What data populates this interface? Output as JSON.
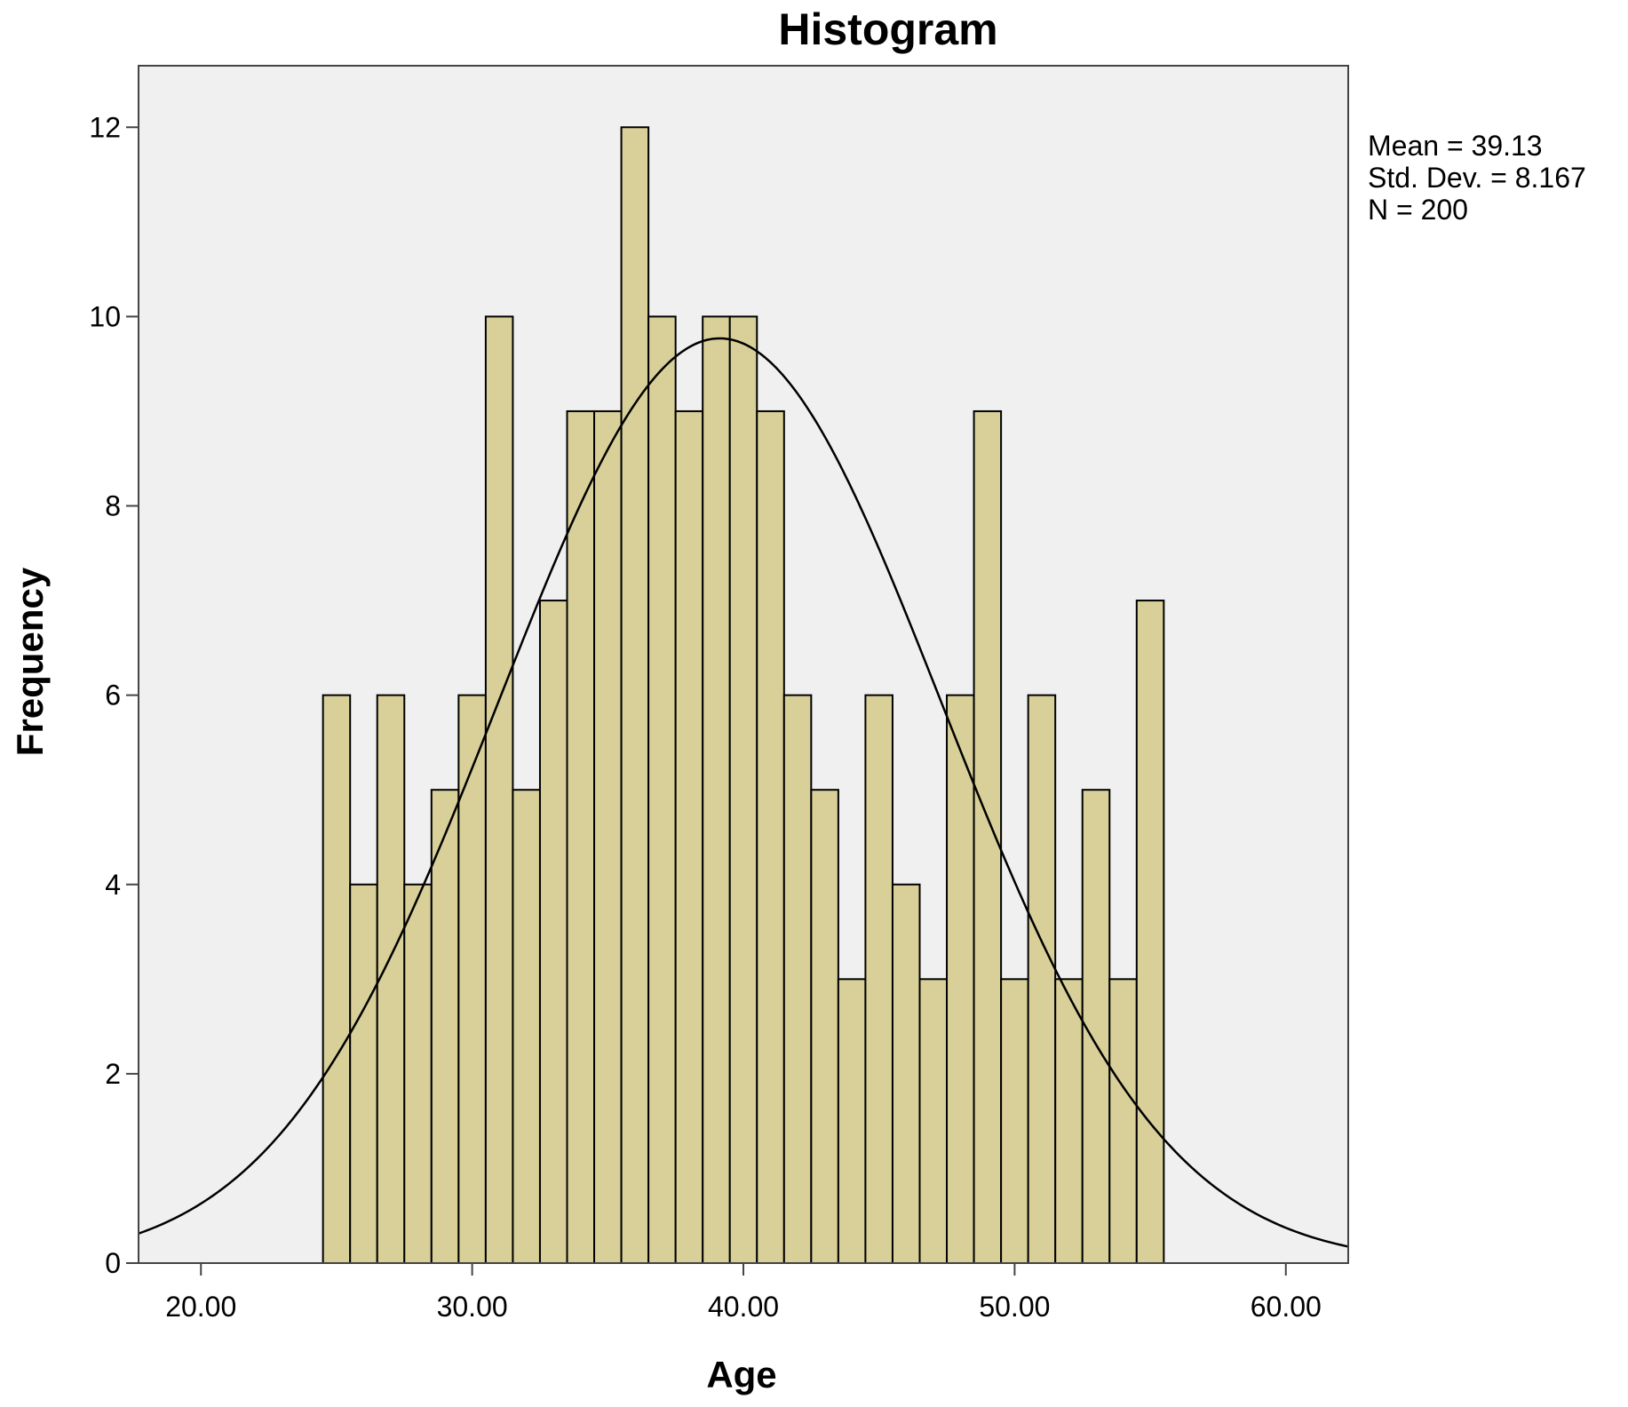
{
  "chart_data": {
    "type": "bar",
    "title": "Histogram",
    "xlabel": "Age",
    "ylabel": "Frequency",
    "xlim": [
      17.7,
      62.3
    ],
    "ylim": [
      0,
      12.65
    ],
    "x_ticks": [
      20,
      30,
      40,
      50,
      60
    ],
    "x_tick_labels": [
      "20.00",
      "30.00",
      "40.00",
      "50.00",
      "60.00"
    ],
    "y_ticks": [
      0,
      2,
      4,
      6,
      8,
      10,
      12
    ],
    "y_tick_labels": [
      "0",
      "2",
      "4",
      "6",
      "8",
      "10",
      "12"
    ],
    "grid": false,
    "bin_start": 24.5,
    "bin_width": 1,
    "values": [
      6,
      4,
      6,
      4,
      5,
      6,
      10,
      5,
      7,
      9,
      9,
      12,
      10,
      9,
      10,
      10,
      9,
      6,
      5,
      3,
      6,
      4,
      3,
      6,
      9,
      3,
      6,
      3,
      5,
      3,
      7
    ],
    "bar_color": "#d8d098",
    "plot_background": "#f0f0f0",
    "normal_curve": {
      "mean": 39.13,
      "std": 8.167,
      "n": 200
    },
    "stats_box": {
      "position": "top-right",
      "lines": [
        "Mean = 39.13",
        "Std. Dev. = 8.167",
        "N = 200"
      ]
    }
  }
}
